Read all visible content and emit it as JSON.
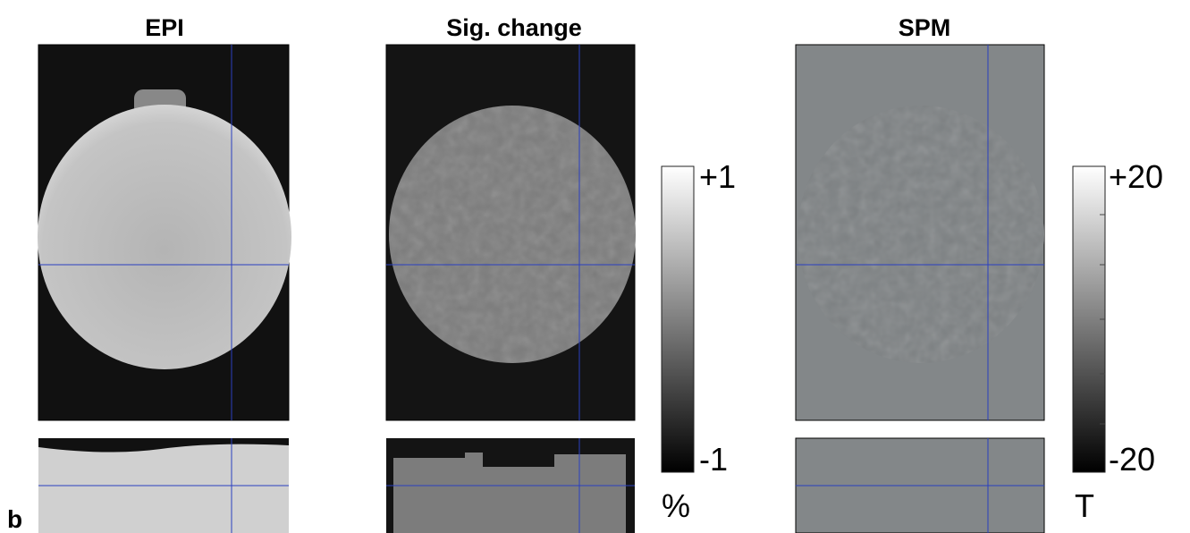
{
  "panel_label": "b",
  "panels": [
    {
      "title": "EPI"
    },
    {
      "title": "Sig. change"
    },
    {
      "title": "SPM"
    }
  ],
  "colorbars": [
    {
      "max_label": "+1",
      "min_label": "-1",
      "unit": "%"
    },
    {
      "max_label": "+20",
      "min_label": "-20",
      "unit": "T"
    }
  ]
}
